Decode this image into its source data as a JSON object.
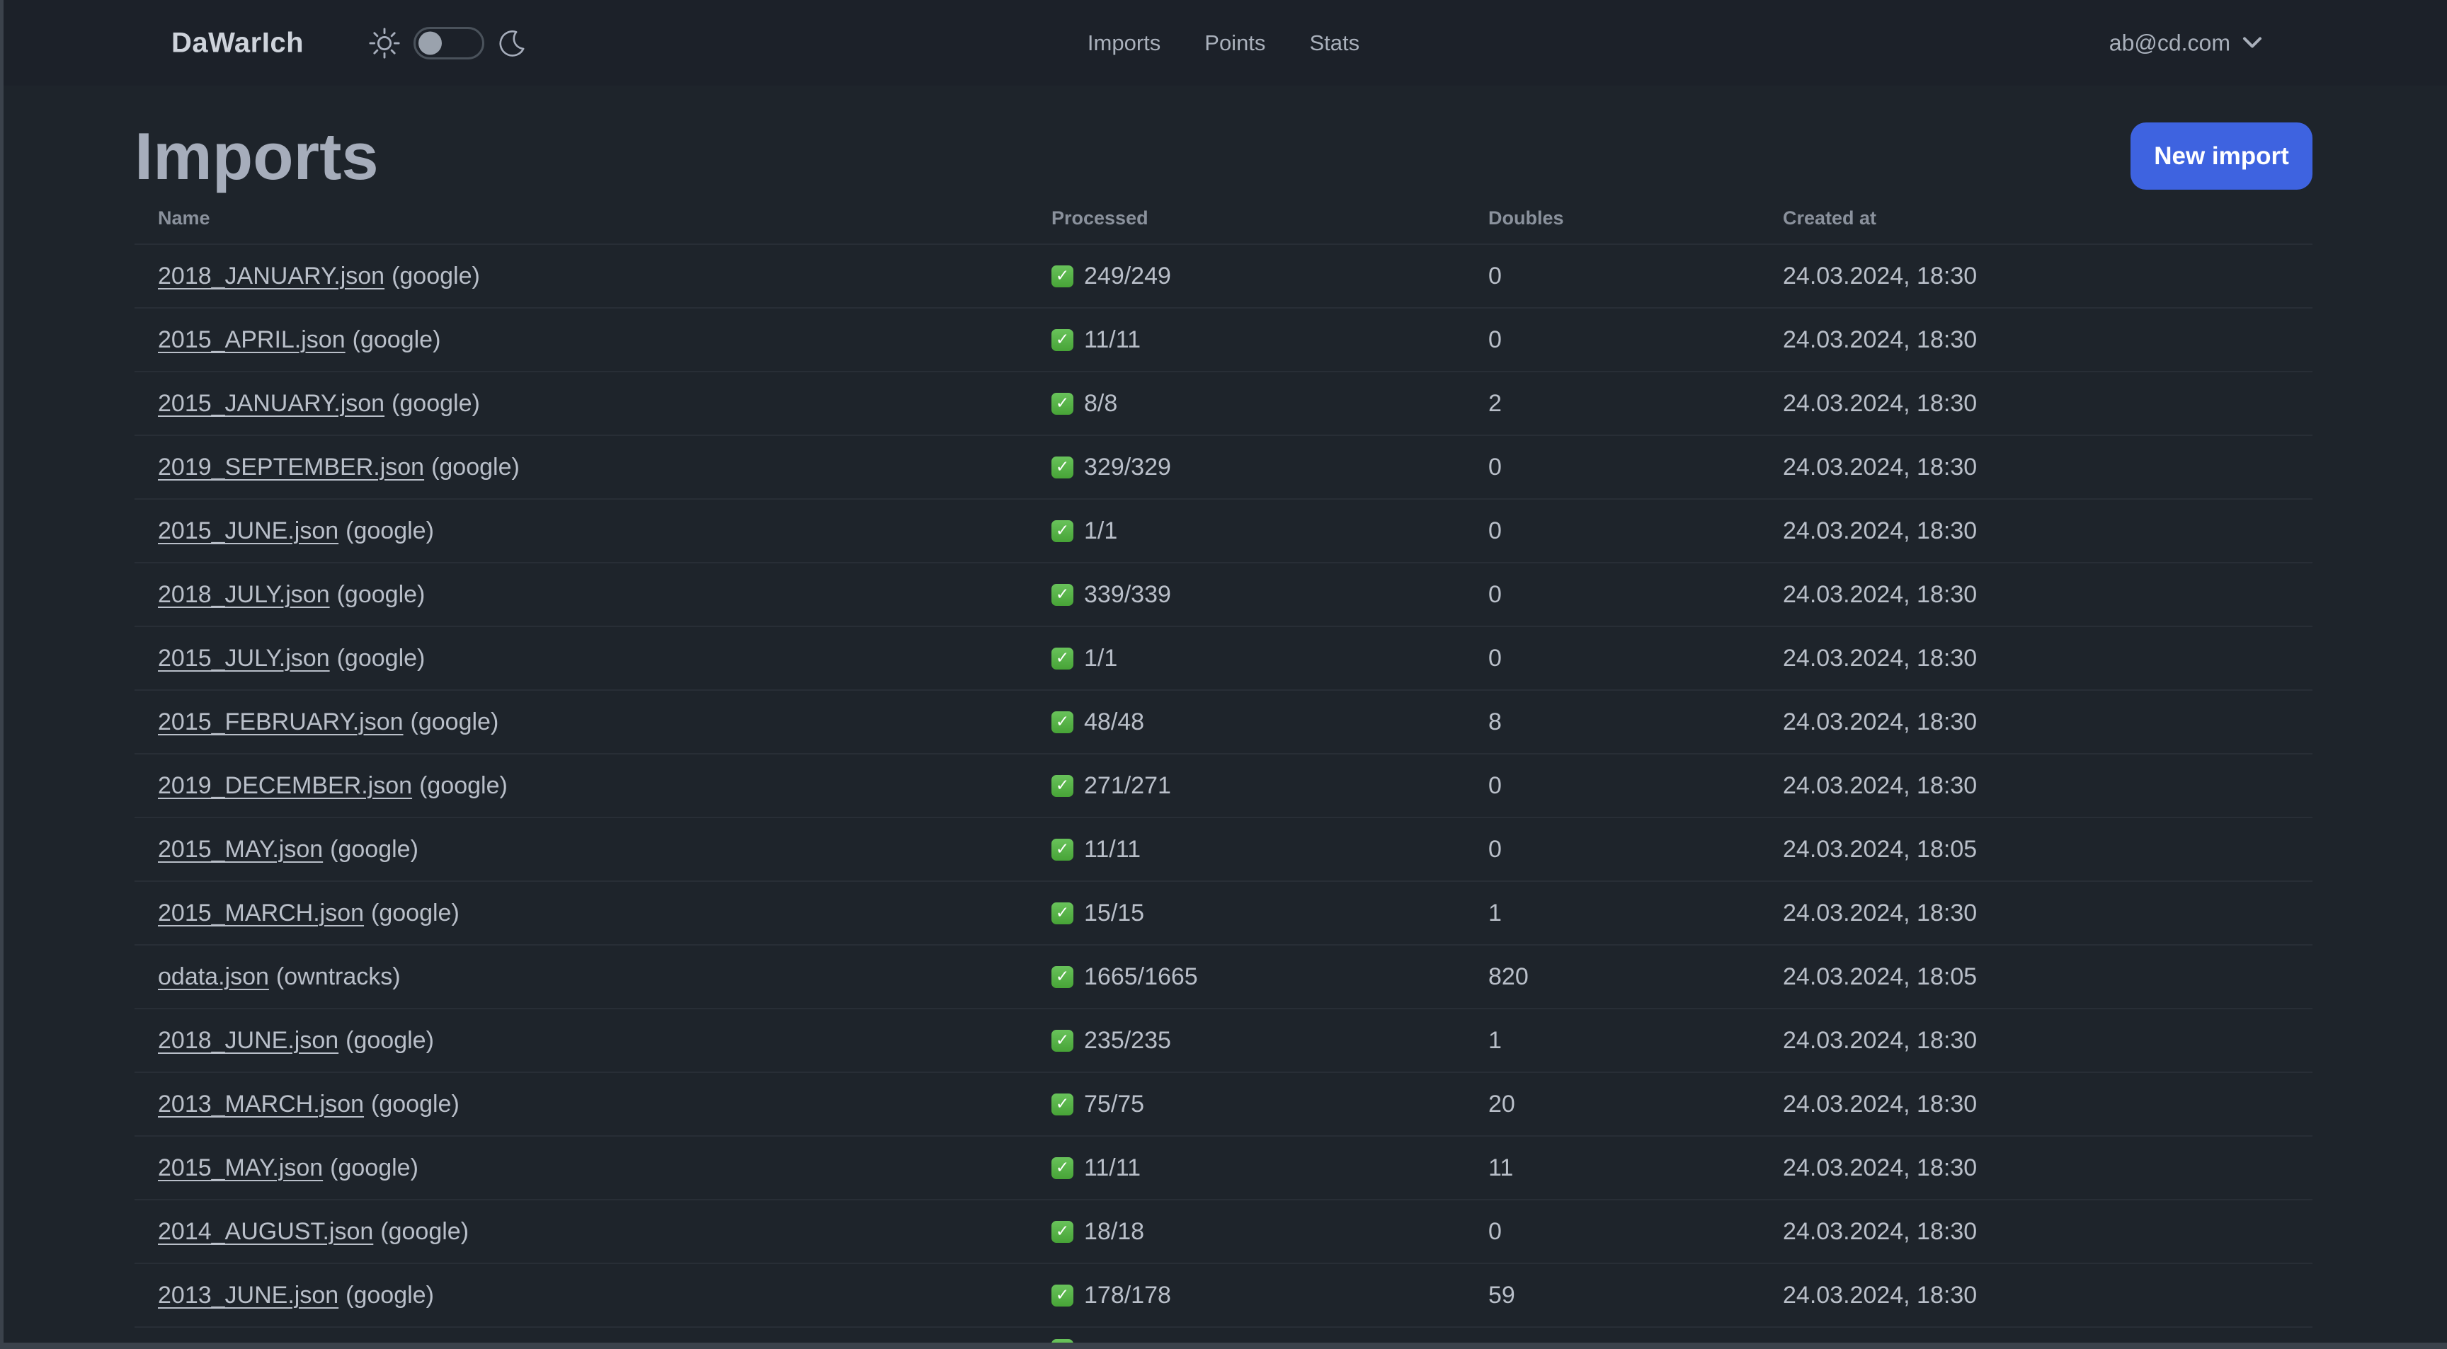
{
  "navbar": {
    "logo": "DaWarIch",
    "nav_items": [
      {
        "label": "Imports"
      },
      {
        "label": "Points"
      },
      {
        "label": "Stats"
      }
    ],
    "account": {
      "email": "ab@cd.com"
    },
    "theme_toggle": {
      "state": "light-knob-left"
    }
  },
  "page": {
    "title": "Imports",
    "new_import_label": "New import"
  },
  "table": {
    "columns": [
      "Name",
      "Processed",
      "Doubles",
      "Created at"
    ],
    "rows": [
      {
        "file": "2018_JANUARY.json",
        "source": "(google)",
        "processed": "249/249",
        "doubles": "0",
        "created_at": "24.03.2024, 18:30"
      },
      {
        "file": "2015_APRIL.json",
        "source": "(google)",
        "processed": "11/11",
        "doubles": "0",
        "created_at": "24.03.2024, 18:30"
      },
      {
        "file": "2015_JANUARY.json",
        "source": "(google)",
        "processed": "8/8",
        "doubles": "2",
        "created_at": "24.03.2024, 18:30"
      },
      {
        "file": "2019_SEPTEMBER.json",
        "source": "(google)",
        "processed": "329/329",
        "doubles": "0",
        "created_at": "24.03.2024, 18:30"
      },
      {
        "file": "2015_JUNE.json",
        "source": "(google)",
        "processed": "1/1",
        "doubles": "0",
        "created_at": "24.03.2024, 18:30"
      },
      {
        "file": "2018_JULY.json",
        "source": "(google)",
        "processed": "339/339",
        "doubles": "0",
        "created_at": "24.03.2024, 18:30"
      },
      {
        "file": "2015_JULY.json",
        "source": "(google)",
        "processed": "1/1",
        "doubles": "0",
        "created_at": "24.03.2024, 18:30"
      },
      {
        "file": "2015_FEBRUARY.json",
        "source": "(google)",
        "processed": "48/48",
        "doubles": "8",
        "created_at": "24.03.2024, 18:30"
      },
      {
        "file": "2019_DECEMBER.json",
        "source": "(google)",
        "processed": "271/271",
        "doubles": "0",
        "created_at": "24.03.2024, 18:30"
      },
      {
        "file": "2015_MAY.json",
        "source": "(google)",
        "processed": "11/11",
        "doubles": "0",
        "created_at": "24.03.2024, 18:05"
      },
      {
        "file": "2015_MARCH.json",
        "source": "(google)",
        "processed": "15/15",
        "doubles": "1",
        "created_at": "24.03.2024, 18:30"
      },
      {
        "file": "odata.json",
        "source": "(owntracks)",
        "processed": "1665/1665",
        "doubles": "820",
        "created_at": "24.03.2024, 18:05"
      },
      {
        "file": "2018_JUNE.json",
        "source": "(google)",
        "processed": "235/235",
        "doubles": "1",
        "created_at": "24.03.2024, 18:30"
      },
      {
        "file": "2013_MARCH.json",
        "source": "(google)",
        "processed": "75/75",
        "doubles": "20",
        "created_at": "24.03.2024, 18:30"
      },
      {
        "file": "2015_MAY.json",
        "source": "(google)",
        "processed": "11/11",
        "doubles": "11",
        "created_at": "24.03.2024, 18:30"
      },
      {
        "file": "2014_AUGUST.json",
        "source": "(google)",
        "processed": "18/18",
        "doubles": "0",
        "created_at": "24.03.2024, 18:30"
      },
      {
        "file": "2013_JUNE.json",
        "source": "(google)",
        "processed": "178/178",
        "doubles": "59",
        "created_at": "24.03.2024, 18:30"
      }
    ],
    "partial_row": {
      "check_visible": true
    }
  },
  "colors": {
    "background": "#1e242b",
    "accent_blue": "#3e63e0",
    "check_green": "#47a437",
    "row_border": "#282e36",
    "text": "#b9bfc9"
  }
}
